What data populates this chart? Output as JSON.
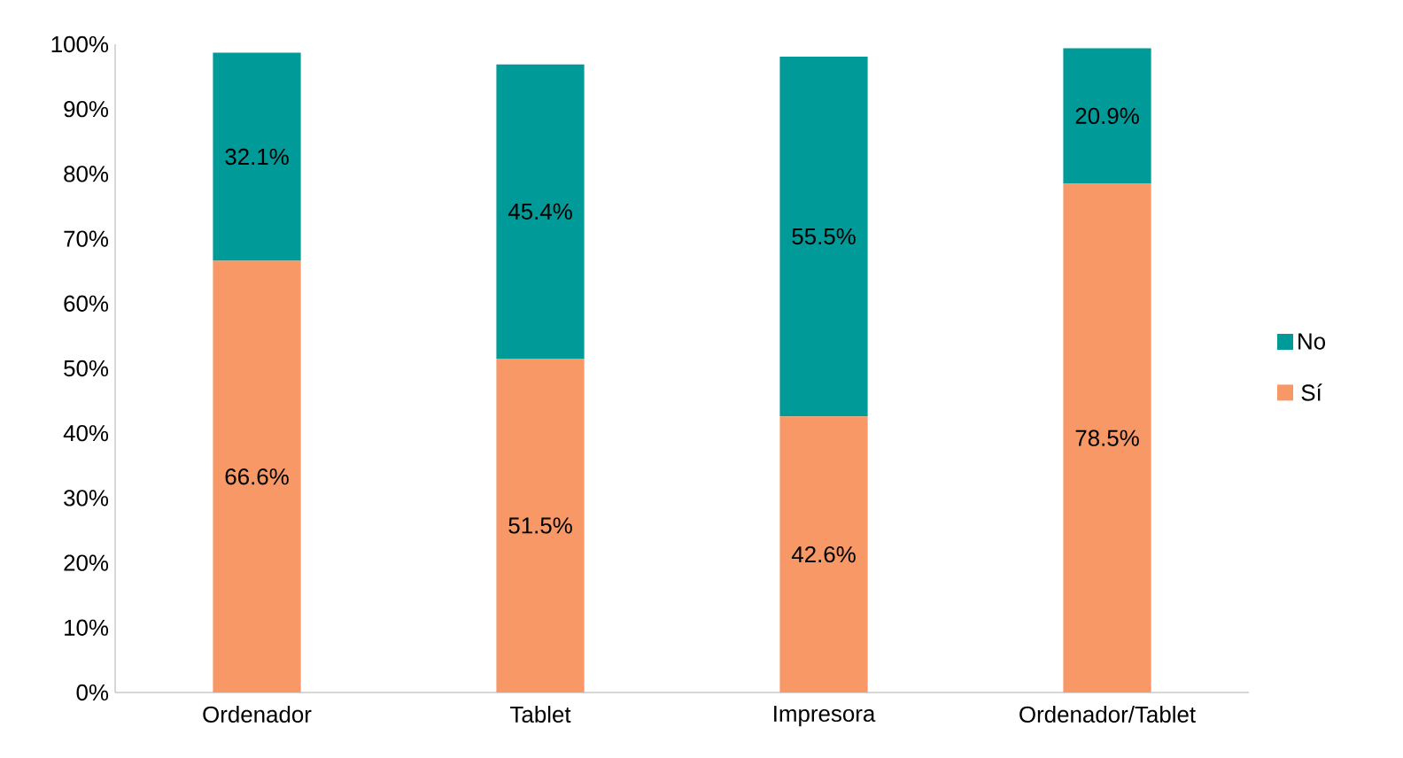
{
  "chart_data": {
    "type": "bar",
    "stacked": true,
    "categories": [
      "Ordenador",
      "Tablet",
      "Impresora",
      "Ordenador/Tablet"
    ],
    "series": [
      {
        "name": "Sí",
        "color": "#f79866",
        "values": [
          66.6,
          51.5,
          42.6,
          78.5
        ],
        "value_labels": [
          "66.6%",
          "51.5%",
          "42.6%",
          "78.5%"
        ]
      },
      {
        "name": "No",
        "color": "#009b98",
        "values": [
          32.1,
          45.4,
          55.5,
          20.9
        ],
        "value_labels": [
          "32.1%",
          "45.4%",
          "55.5%",
          "20.9%"
        ]
      }
    ],
    "ylim": [
      0,
      100
    ],
    "yticks": [
      {
        "value": 0,
        "label": "0%"
      },
      {
        "value": 10,
        "label": "10%"
      },
      {
        "value": 20,
        "label": "20%"
      },
      {
        "value": 30,
        "label": "30%"
      },
      {
        "value": 40,
        "label": "40%"
      },
      {
        "value": 50,
        "label": "50%"
      },
      {
        "value": 60,
        "label": "60%"
      },
      {
        "value": 70,
        "label": "70%"
      },
      {
        "value": 80,
        "label": "80%"
      },
      {
        "value": 90,
        "label": "90%"
      },
      {
        "value": 100,
        "label": "100%"
      }
    ],
    "grid": false,
    "legend": "right"
  }
}
